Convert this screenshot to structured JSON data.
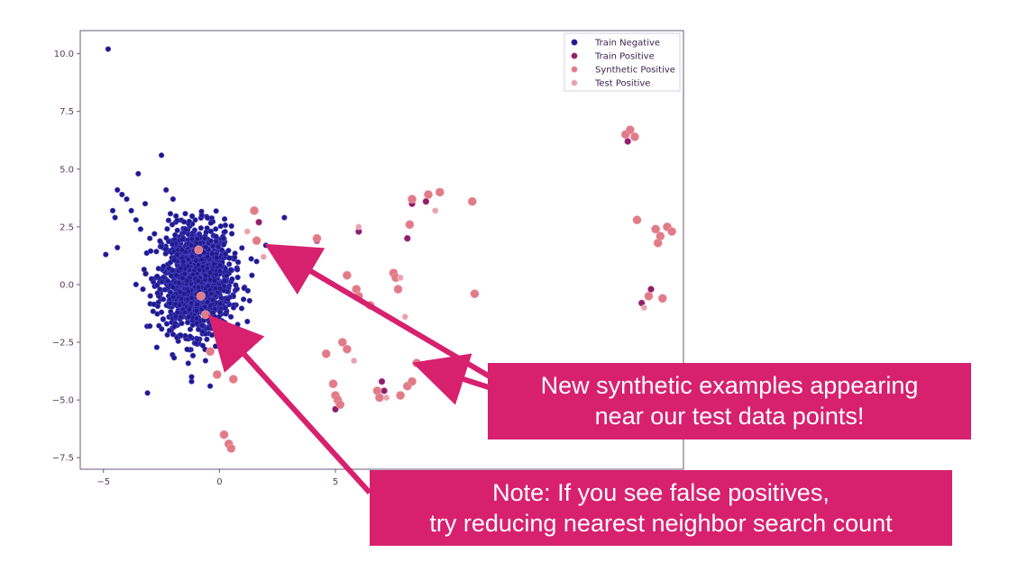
{
  "colors": {
    "train_negative": "#1f1a8a",
    "train_positive": "#8b1f6b",
    "synthetic_positive": "#e07b87",
    "test_positive": "#e9a2ae",
    "callout": "#d7216f",
    "axis": "#6e5a7a"
  },
  "chart_data": {
    "type": "scatter",
    "xlim": [
      -6,
      20
    ],
    "ylim": [
      -8,
      11
    ],
    "xticks": [
      "−5",
      "0",
      "5"
    ],
    "yticks": [
      "10.0",
      "7.5",
      "5.0",
      "2.5",
      "0.0",
      "−2.5",
      "−5.0",
      "−7.5"
    ],
    "xtick_values": [
      -5,
      0,
      5
    ],
    "ytick_values": [
      10,
      7.5,
      5,
      2.5,
      0,
      -2.5,
      -5,
      -7.5
    ],
    "legend_position": "top-right",
    "grid": false,
    "series": [
      {
        "name": "Train Negative",
        "color_key": "train_negative",
        "cluster": {
          "center": [
            -1.0,
            0.2
          ],
          "sd": [
            0.75,
            1.15
          ],
          "count": 1400,
          "approximate": true
        },
        "points": [
          [
            -4.8,
            10.2
          ],
          [
            -2.5,
            5.6
          ],
          [
            -3.5,
            4.8
          ],
          [
            -4.4,
            4.1
          ],
          [
            -4.2,
            3.9
          ],
          [
            -4.0,
            3.7
          ],
          [
            -4.6,
            3.2
          ],
          [
            -4.5,
            2.9
          ],
          [
            -3.8,
            3.2
          ],
          [
            -3.4,
            2.4
          ],
          [
            -3.0,
            2.0
          ],
          [
            -4.4,
            1.6
          ],
          [
            -4.9,
            1.3
          ],
          [
            -2.3,
            4.1
          ],
          [
            -2.0,
            3.7
          ],
          [
            -3.2,
            3.5
          ],
          [
            -3.6,
            2.8
          ],
          [
            -2.8,
            2.2
          ],
          [
            -3.6,
            0.0
          ],
          [
            -3.3,
            -0.2
          ],
          [
            -3.0,
            -1.8
          ],
          [
            -3.1,
            -4.7
          ],
          [
            -1.2,
            -4.2
          ],
          [
            -1.2,
            -4.0
          ],
          [
            -0.6,
            -3.3
          ],
          [
            -0.4,
            -4.4
          ],
          [
            0.6,
            -4.1
          ],
          [
            1.3,
            -0.7
          ],
          [
            1.4,
            0.4
          ],
          [
            1.2,
            -1.6
          ],
          [
            2.0,
            1.7
          ],
          [
            2.8,
            2.9
          ],
          [
            1.6,
            1.0
          ]
        ]
      },
      {
        "name": "Train Positive",
        "color_key": "train_positive",
        "points": [
          [
            4.2,
            1.9
          ],
          [
            5.0,
            -5.4
          ],
          [
            7.0,
            -4.2
          ],
          [
            7.1,
            -4.6
          ],
          [
            8.3,
            3.5
          ],
          [
            8.9,
            3.6
          ],
          [
            8.1,
            2.0
          ],
          [
            6.0,
            2.3
          ],
          [
            17.6,
            6.2
          ],
          [
            18.2,
            -0.8
          ],
          [
            18.6,
            -0.2
          ],
          [
            1.7,
            2.7
          ]
        ]
      },
      {
        "name": "Synthetic Positive",
        "color_key": "synthetic_positive",
        "points": [
          [
            -0.9,
            1.5
          ],
          [
            -0.8,
            -0.5
          ],
          [
            -0.6,
            -1.3
          ],
          [
            -0.4,
            -2.9
          ],
          [
            -0.1,
            -3.9
          ],
          [
            0.6,
            -4.1
          ],
          [
            0.2,
            -6.5
          ],
          [
            0.4,
            -6.9
          ],
          [
            0.5,
            -7.1
          ],
          [
            1.5,
            3.2
          ],
          [
            1.6,
            1.9
          ],
          [
            4.2,
            2.0
          ],
          [
            4.6,
            -3.0
          ],
          [
            4.9,
            -4.3
          ],
          [
            5.0,
            -4.8
          ],
          [
            5.1,
            -5.0
          ],
          [
            5.2,
            -5.2
          ],
          [
            5.3,
            -2.5
          ],
          [
            5.5,
            -2.8
          ],
          [
            5.5,
            0.4
          ],
          [
            5.9,
            -0.2
          ],
          [
            6.0,
            -0.5
          ],
          [
            6.5,
            -0.9
          ],
          [
            6.8,
            -4.6
          ],
          [
            6.9,
            -4.9
          ],
          [
            7.5,
            0.5
          ],
          [
            7.6,
            0.3
          ],
          [
            7.7,
            -0.2
          ],
          [
            7.8,
            -4.8
          ],
          [
            8.1,
            -4.4
          ],
          [
            8.3,
            -4.2
          ],
          [
            8.5,
            -3.4
          ],
          [
            8.3,
            3.7
          ],
          [
            8.2,
            2.6
          ],
          [
            9.0,
            3.9
          ],
          [
            9.5,
            4.0
          ],
          [
            10.9,
            3.6
          ],
          [
            11.0,
            -0.4
          ],
          [
            17.5,
            6.5
          ],
          [
            17.7,
            6.7
          ],
          [
            17.9,
            6.4
          ],
          [
            18.0,
            2.8
          ],
          [
            18.8,
            2.4
          ],
          [
            18.9,
            1.8
          ],
          [
            19.0,
            2.1
          ],
          [
            19.3,
            2.5
          ],
          [
            19.5,
            2.3
          ],
          [
            18.5,
            -0.5
          ],
          [
            19.1,
            -0.6
          ]
        ]
      },
      {
        "name": "Test Positive",
        "color_key": "test_positive",
        "points": [
          [
            1.2,
            2.3
          ],
          [
            1.9,
            1.2
          ],
          [
            6.0,
            2.5
          ],
          [
            7.8,
            0.3
          ],
          [
            9.3,
            3.2
          ],
          [
            8.0,
            -1.4
          ],
          [
            5.8,
            -3.3
          ],
          [
            18.3,
            -1.0
          ],
          [
            7.2,
            -4.9
          ]
        ]
      }
    ]
  },
  "callouts": {
    "synthetic_line1": "New synthetic examples appearing",
    "synthetic_line2": "near our test data points!",
    "note_line1": "Note: If you see false positives,",
    "note_line2": "try reducing nearest neighbor search count"
  }
}
